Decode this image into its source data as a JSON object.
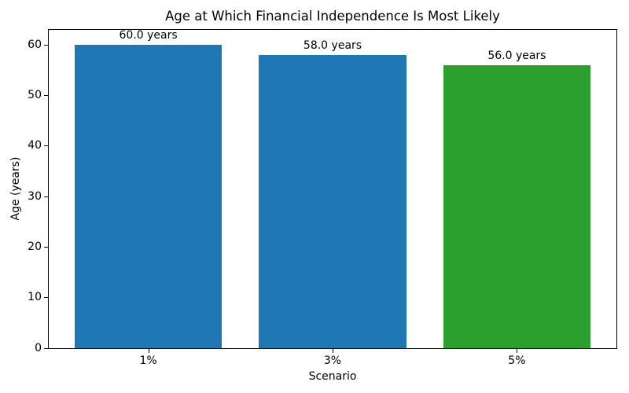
{
  "chart_data": {
    "type": "bar",
    "title": "Age at Which Financial Independence Is Most Likely",
    "xlabel": "Scenario",
    "ylabel": "Age (years)",
    "categories": [
      "1%",
      "3%",
      "5%"
    ],
    "values": [
      60.0,
      58.0,
      56.0
    ],
    "bar_labels": [
      "60.0 years",
      "58.0 years",
      "56.0 years"
    ],
    "bar_colors": [
      "#1f77b4",
      "#1f77b4",
      "#2ca02c"
    ],
    "ylim": [
      0,
      63
    ],
    "yticks": [
      0,
      10,
      20,
      30,
      40,
      50,
      60
    ],
    "bar_width_fraction": 0.8,
    "grid": false,
    "legend": false,
    "background_color": "#ffffff",
    "spine_color": "#000000",
    "text_color": "#000000"
  }
}
